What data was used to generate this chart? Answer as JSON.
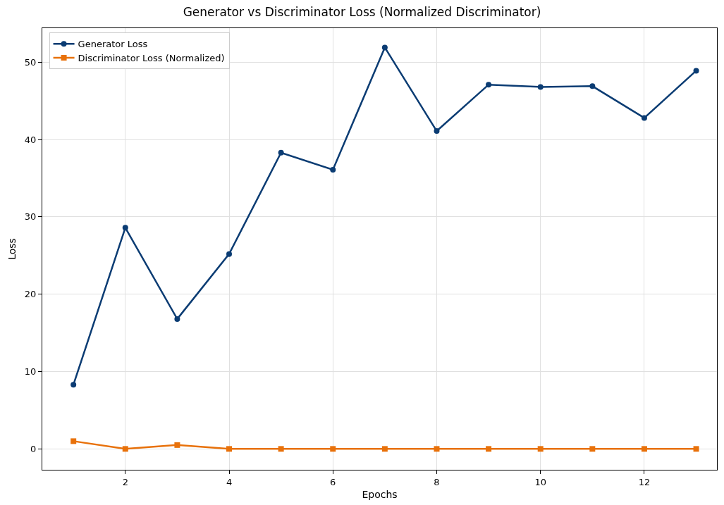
{
  "chart_data": {
    "type": "line",
    "title": "Generator vs Discriminator Loss (Normalized Discriminator)",
    "xlabel": "Epochs",
    "ylabel": "Loss",
    "x": [
      1,
      2,
      3,
      4,
      5,
      6,
      7,
      8,
      9,
      10,
      11,
      12,
      13
    ],
    "series": [
      {
        "name": "Generator Loss",
        "color": "#0b3c73",
        "marker": "circle",
        "values": [
          8.3,
          28.6,
          16.8,
          25.2,
          38.3,
          36.1,
          51.9,
          41.1,
          47.1,
          46.8,
          46.9,
          42.8,
          48.9
        ]
      },
      {
        "name": "Discriminator Loss (Normalized)",
        "color": "#e8710a",
        "marker": "square",
        "values": [
          1.0,
          0.0,
          0.5,
          0.0,
          0.0,
          0.0,
          0.0,
          0.0,
          0.0,
          0.0,
          0.0,
          0.0,
          0.0
        ]
      }
    ],
    "xlim": [
      0.4,
      13.4
    ],
    "xticks": [
      2,
      4,
      6,
      8,
      10,
      12
    ],
    "ylim": [
      -2.7,
      54.4
    ],
    "yticks": [
      0,
      10,
      20,
      30,
      40,
      50
    ],
    "grid": true,
    "legend": "top left",
    "line_style": "solid"
  }
}
